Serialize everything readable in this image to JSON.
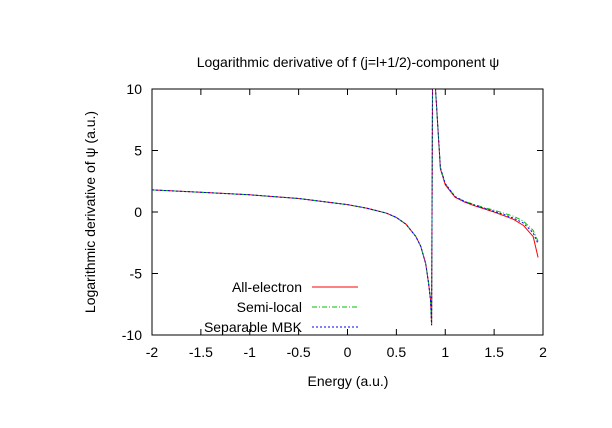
{
  "chart_data": {
    "type": "line",
    "title": "Logarithmic derivative of f (j=l+1/2)-component ψ",
    "xlabel": "Energy (a.u.)",
    "ylabel": "Logarithmic derivative of ψ (a.u.)",
    "xlim": [
      -2,
      2
    ],
    "ylim": [
      -10,
      10
    ],
    "xticks": [
      "-2",
      "-1.5",
      "-1",
      "-0.5",
      "0",
      "0.5",
      "1",
      "1.5",
      "2"
    ],
    "yticks": [
      "10",
      "5",
      "0",
      "-5",
      "-10"
    ],
    "grid": false,
    "legend_position": "bottom-left",
    "series": [
      {
        "name": "All-electron",
        "color": "#ff0000",
        "dash": "solid",
        "x": [
          -2.0,
          -1.5,
          -1.0,
          -0.5,
          0.0,
          0.2,
          0.4,
          0.5,
          0.6,
          0.7,
          0.75,
          0.8,
          0.83,
          0.85,
          0.86,
          0.87,
          0.88,
          0.89,
          0.9,
          0.95,
          1.0,
          1.1,
          1.2,
          1.3,
          1.4,
          1.5,
          1.6,
          1.7,
          1.8,
          1.9,
          1.95
        ],
        "y": [
          1.8,
          1.6,
          1.4,
          1.1,
          0.6,
          0.3,
          -0.1,
          -0.45,
          -1.0,
          -2.0,
          -2.8,
          -4.2,
          -5.8,
          -7.2,
          -9.2,
          10.0,
          10.0,
          10.0,
          10.0,
          3.5,
          2.2,
          1.2,
          0.8,
          0.5,
          0.25,
          0.0,
          -0.3,
          -0.6,
          -1.1,
          -2.0,
          -3.7
        ]
      },
      {
        "name": "Semi-local",
        "color": "#00c000",
        "dash": "dash",
        "x": [
          -2.0,
          -1.5,
          -1.0,
          -0.5,
          0.0,
          0.2,
          0.4,
          0.5,
          0.6,
          0.7,
          0.75,
          0.8,
          0.83,
          0.85,
          0.86,
          0.87,
          0.88,
          0.89,
          0.9,
          0.95,
          1.0,
          1.1,
          1.2,
          1.3,
          1.4,
          1.5,
          1.6,
          1.7,
          1.8,
          1.9,
          1.95
        ],
        "y": [
          1.8,
          1.6,
          1.4,
          1.1,
          0.6,
          0.3,
          -0.1,
          -0.45,
          -1.0,
          -2.0,
          -2.8,
          -4.2,
          -5.8,
          -7.2,
          -9.2,
          10.0,
          10.0,
          10.0,
          10.0,
          3.6,
          2.3,
          1.25,
          0.85,
          0.6,
          0.35,
          0.15,
          -0.1,
          -0.35,
          -0.75,
          -1.5,
          -2.4
        ]
      },
      {
        "name": "Separable MBK",
        "color": "#0000ff",
        "dash": "dot",
        "x": [
          -2.0,
          -1.5,
          -1.0,
          -0.5,
          0.0,
          0.2,
          0.4,
          0.5,
          0.6,
          0.7,
          0.75,
          0.8,
          0.83,
          0.85,
          0.86,
          0.87,
          0.88,
          0.89,
          0.9,
          0.95,
          1.0,
          1.1,
          1.2,
          1.3,
          1.4,
          1.5,
          1.6,
          1.7,
          1.8,
          1.9,
          1.95
        ],
        "y": [
          1.8,
          1.6,
          1.4,
          1.1,
          0.6,
          0.3,
          -0.1,
          -0.45,
          -1.0,
          -2.0,
          -2.8,
          -4.2,
          -5.8,
          -7.2,
          -9.2,
          10.0,
          10.0,
          10.0,
          10.0,
          3.6,
          2.3,
          1.25,
          0.85,
          0.55,
          0.3,
          0.05,
          -0.2,
          -0.5,
          -0.9,
          -1.7,
          -2.6
        ]
      }
    ]
  }
}
